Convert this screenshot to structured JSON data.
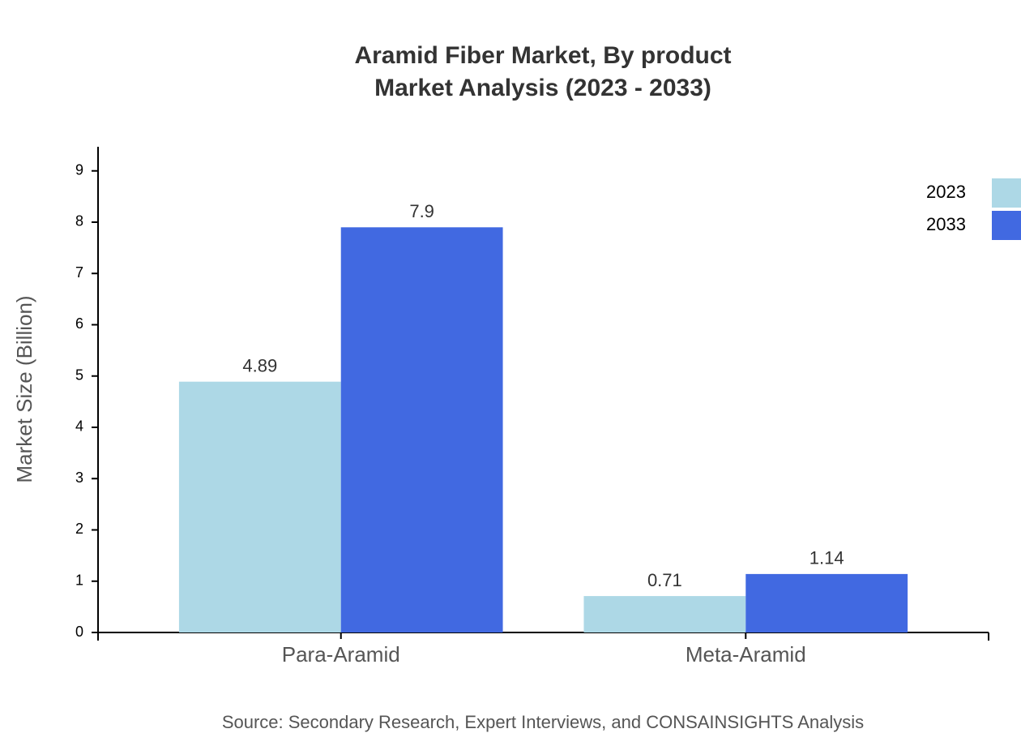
{
  "chart_data": {
    "type": "bar",
    "title": "Aramid Fiber Market, By product",
    "subtitle": "Market Analysis (2023 - 2033)",
    "y_label": "Market Size (Billion)",
    "source": "Source: Secondary Research, Expert Interviews, and CONSAINSIGHTS Analysis",
    "categories": [
      "Para-Aramid",
      "Meta-Aramid"
    ],
    "series": [
      {
        "name": "2023",
        "color": "#add8e6",
        "values": [
          4.89,
          0.71
        ]
      },
      {
        "name": "2033",
        "color": "#4169e1",
        "values": [
          7.9,
          1.14
        ]
      }
    ],
    "ylim": [
      0,
      9.47
    ],
    "yticks": [
      0,
      1,
      2,
      3,
      4,
      5,
      6,
      7,
      8,
      9
    ],
    "legend": "upper right"
  }
}
